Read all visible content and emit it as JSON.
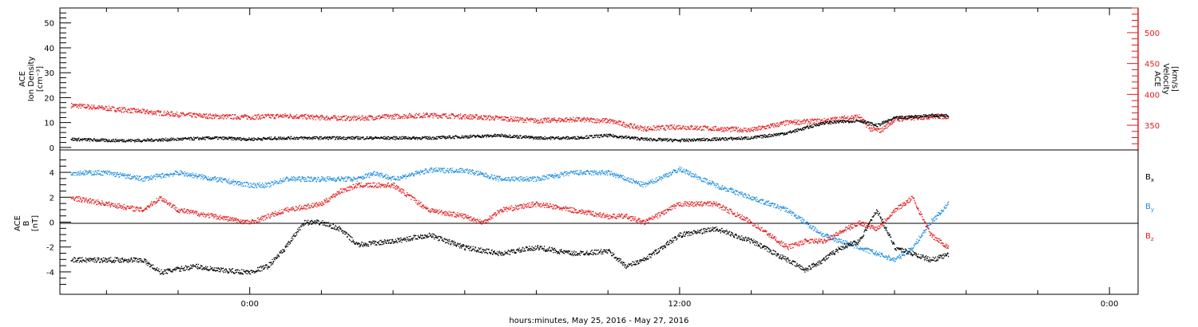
{
  "colors": {
    "black": "#000000",
    "red": "#e41a1c",
    "blue": "#1f8ee0",
    "frame": "#000000"
  },
  "xaxis": {
    "label": "hours:minutes, May 25, 2016 - May 27, 2016",
    "tick_labels": [
      "0:00",
      "12:00",
      "0:00"
    ],
    "major_ticks_hours": [
      0,
      12,
      24
    ],
    "minor_tick_step_hours": 2,
    "range_hours": [
      -5.3,
      24.8
    ]
  },
  "chart_data": [
    {
      "type": "scatter",
      "title": "",
      "xlabel": "hours:minutes, May 25, 2016 - May 27, 2016",
      "ylabel": "ACE Ion Density [cm^-3]",
      "ylabel_lines": [
        "ACE",
        "Ion Density",
        "[cm⁻³]"
      ],
      "ylim": [
        -1,
        56
      ],
      "yticks": [
        0,
        10,
        20,
        30,
        40,
        50
      ],
      "y2label_lines": [
        "ACE",
        "Velocity",
        "[km/s]"
      ],
      "y2lim": [
        310,
        540
      ],
      "y2ticks": [
        350,
        400,
        450,
        500
      ],
      "series": [
        {
          "name": "",
          "axis": "left",
          "color": "#000000",
          "x_hours": [
            -5.0,
            -4.0,
            -3.0,
            -2.0,
            -1.0,
            0.0,
            1.0,
            2.0,
            3.0,
            4.0,
            5.0,
            6.0,
            7.0,
            8.0,
            9.0,
            10.0,
            11.0,
            12.0,
            13.0,
            14.0,
            15.0,
            16.0,
            17.0,
            17.5,
            18.0,
            19.0,
            19.5
          ],
          "values": [
            3.5,
            3,
            3,
            3.5,
            4,
            3.5,
            4,
            4,
            4,
            4,
            4,
            4.5,
            5,
            4,
            4,
            5,
            3.5,
            3,
            3.5,
            4,
            6,
            10,
            11,
            9,
            12,
            13,
            13
          ]
        },
        {
          "name": "",
          "axis": "right",
          "color": "#e41a1c",
          "x_hours": [
            -5.0,
            -4.0,
            -3.0,
            -2.0,
            -1.0,
            0.0,
            1.0,
            2.0,
            3.0,
            4.0,
            5.0,
            6.0,
            7.0,
            8.0,
            9.0,
            10.0,
            11.0,
            12.0,
            13.0,
            14.0,
            15.0,
            16.0,
            17.0,
            17.3,
            17.6,
            18.0,
            19.0,
            19.5
          ],
          "values": [
            383,
            378,
            373,
            368,
            365,
            364,
            366,
            363,
            362,
            365,
            367,
            365,
            362,
            358,
            360,
            358,
            345,
            348,
            345,
            343,
            355,
            358,
            365,
            345,
            342,
            360,
            365,
            365
          ]
        }
      ]
    },
    {
      "type": "scatter",
      "title": "",
      "xlabel": "hours:minutes, May 25, 2016 - May 27, 2016",
      "ylabel": "ACE B [nT]",
      "ylabel_lines": [
        "ACE",
        "B",
        "[nT]"
      ],
      "ylim": [
        -5.8,
        5.8
      ],
      "yticks": [
        -4,
        -2,
        0,
        2,
        4
      ],
      "zero_line": true,
      "legend": [
        {
          "label": "B",
          "sub": "x",
          "color": "#000000"
        },
        {
          "label": "B",
          "sub": "y",
          "color": "#1f8ee0"
        },
        {
          "label": "B",
          "sub": "z",
          "color": "#e41a1c"
        }
      ],
      "legend_position": "right",
      "series": [
        {
          "name": "Bx",
          "color": "#000000",
          "x_hours": [
            -5.0,
            -4.0,
            -3.0,
            -2.5,
            -1.5,
            -1.0,
            0.0,
            0.5,
            1.0,
            1.5,
            2.0,
            2.5,
            3.0,
            4.0,
            5.0,
            6.0,
            7.0,
            8.0,
            9.0,
            10.0,
            10.5,
            11.0,
            12.0,
            13.0,
            14.0,
            15.0,
            15.5,
            16.0,
            16.5,
            17.0,
            17.5,
            18.0,
            19.0,
            19.5
          ],
          "values": [
            -3,
            -3,
            -3,
            -4,
            -3.5,
            -3.8,
            -4,
            -3.5,
            -2,
            0,
            0,
            -0.5,
            -1.8,
            -1.5,
            -1,
            -2,
            -2.5,
            -2,
            -2.5,
            -2.3,
            -3.5,
            -3,
            -1,
            -0.5,
            -1.5,
            -3,
            -3.8,
            -3,
            -2,
            -1.5,
            1,
            -2,
            -3,
            -2.6
          ]
        },
        {
          "name": "By",
          "color": "#1f8ee0",
          "x_hours": [
            -5.0,
            -4.0,
            -3.0,
            -2.0,
            -1.0,
            0.0,
            0.5,
            1.0,
            2.0,
            3.0,
            3.5,
            4.0,
            5.0,
            6.0,
            7.0,
            8.0,
            9.0,
            10.0,
            11.0,
            12.0,
            13.0,
            14.0,
            15.0,
            15.5,
            16.0,
            16.5,
            17.0,
            17.5,
            18.0,
            18.5,
            19.0,
            19.5
          ],
          "values": [
            4,
            4,
            3.5,
            4,
            3.5,
            3,
            3,
            3.5,
            3.5,
            3.5,
            4,
            3.5,
            4.2,
            4.2,
            3.5,
            3.5,
            4,
            4,
            3,
            4.3,
            3,
            2,
            1,
            0,
            -1,
            -1.5,
            -2,
            -2.5,
            -3,
            -2,
            0,
            1.5
          ]
        },
        {
          "name": "Bz",
          "color": "#e41a1c",
          "x_hours": [
            -5.0,
            -4.0,
            -3.0,
            -2.5,
            -2.0,
            -1.0,
            0.0,
            1.0,
            2.0,
            2.5,
            3.0,
            3.5,
            4.0,
            5.0,
            6.0,
            6.5,
            7.0,
            8.0,
            9.0,
            10.0,
            10.5,
            11.0,
            12.0,
            13.0,
            14.0,
            14.5,
            15.0,
            15.5,
            16.0,
            17.0,
            17.5,
            18.0,
            18.5,
            19.0,
            19.5
          ],
          "values": [
            2,
            1.5,
            1,
            2,
            1,
            0.5,
            0,
            1,
            1.5,
            2.5,
            3,
            3,
            3,
            1,
            0.5,
            0,
            1,
            1.5,
            1,
            0.5,
            0.5,
            0,
            1.5,
            1.5,
            0,
            -1,
            -2,
            -1.5,
            -1.5,
            0,
            -0.5,
            1,
            2,
            -1,
            -2
          ]
        }
      ]
    }
  ],
  "legend_labels": {
    "bx": "B",
    "bx_sub": "x",
    "by": "B",
    "by_sub": "y",
    "bz": "B",
    "bz_sub": "z"
  }
}
